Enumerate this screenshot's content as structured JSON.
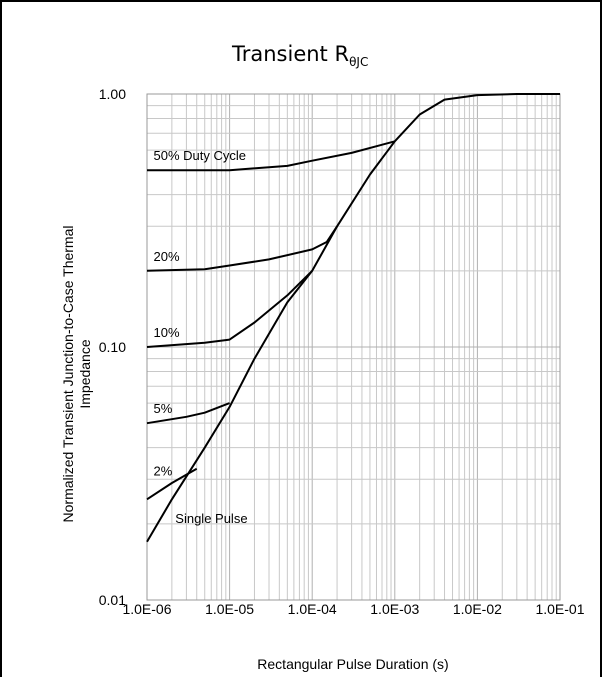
{
  "chart_data": {
    "type": "line",
    "title": "Transient R",
    "title_subscript": "θJC",
    "xlabel": "Rectangular Pulse Duration (s)",
    "ylabel_line1": "Normalized Transient Junction-to-Case Thermal",
    "ylabel_line2": "Impedance",
    "x_scale": "log",
    "y_scale": "log",
    "xlim": [
      1e-06,
      0.1
    ],
    "ylim": [
      0.01,
      1.0
    ],
    "x_tick_labels": [
      "1.0E-06",
      "1.0E-05",
      "1.0E-04",
      "1.0E-03",
      "1.0E-02",
      "1.0E-01"
    ],
    "y_tick_labels": [
      "0.01",
      "0.10",
      "1.00"
    ],
    "grid": true,
    "line_color": "#000000",
    "grid_color": "#c8c8c8",
    "series": [
      {
        "name": "Single Pulse",
        "points": [
          [
            1e-06,
            0.017
          ],
          [
            2e-06,
            0.025
          ],
          [
            5e-06,
            0.04
          ],
          [
            1e-05,
            0.058
          ],
          [
            2e-05,
            0.09
          ],
          [
            5e-05,
            0.15
          ],
          [
            0.0001,
            0.2
          ],
          [
            0.0002,
            0.3
          ],
          [
            0.0005,
            0.48
          ],
          [
            0.001,
            0.65
          ],
          [
            0.002,
            0.83
          ],
          [
            0.004,
            0.95
          ],
          [
            0.01,
            0.99
          ],
          [
            0.03,
            1.0
          ],
          [
            0.1,
            1.0
          ]
        ]
      },
      {
        "name": "2%",
        "points": [
          [
            1e-06,
            0.025
          ],
          [
            2e-06,
            0.029
          ],
          [
            4e-06,
            0.033
          ]
        ]
      },
      {
        "name": "5%",
        "points": [
          [
            1e-06,
            0.05
          ],
          [
            3e-06,
            0.053
          ],
          [
            5e-06,
            0.055
          ],
          [
            1e-05,
            0.06
          ]
        ]
      },
      {
        "name": "10%",
        "points": [
          [
            1e-06,
            0.1
          ],
          [
            5e-06,
            0.104
          ],
          [
            1e-05,
            0.107
          ],
          [
            2e-05,
            0.125
          ],
          [
            5e-05,
            0.16
          ],
          [
            0.0001,
            0.2
          ]
        ]
      },
      {
        "name": "20%",
        "points": [
          [
            1e-06,
            0.2
          ],
          [
            5e-06,
            0.203
          ],
          [
            1e-05,
            0.21
          ],
          [
            3e-05,
            0.222
          ],
          [
            0.0001,
            0.243
          ],
          [
            0.00015,
            0.26
          ],
          [
            0.0002,
            0.3
          ]
        ]
      },
      {
        "name": "50% Duty Cycle",
        "points": [
          [
            1e-06,
            0.5
          ],
          [
            5e-06,
            0.5
          ],
          [
            1e-05,
            0.5
          ],
          [
            5e-05,
            0.52
          ],
          [
            0.0001,
            0.545
          ],
          [
            0.0003,
            0.585
          ],
          [
            0.001,
            0.65
          ]
        ]
      }
    ]
  }
}
